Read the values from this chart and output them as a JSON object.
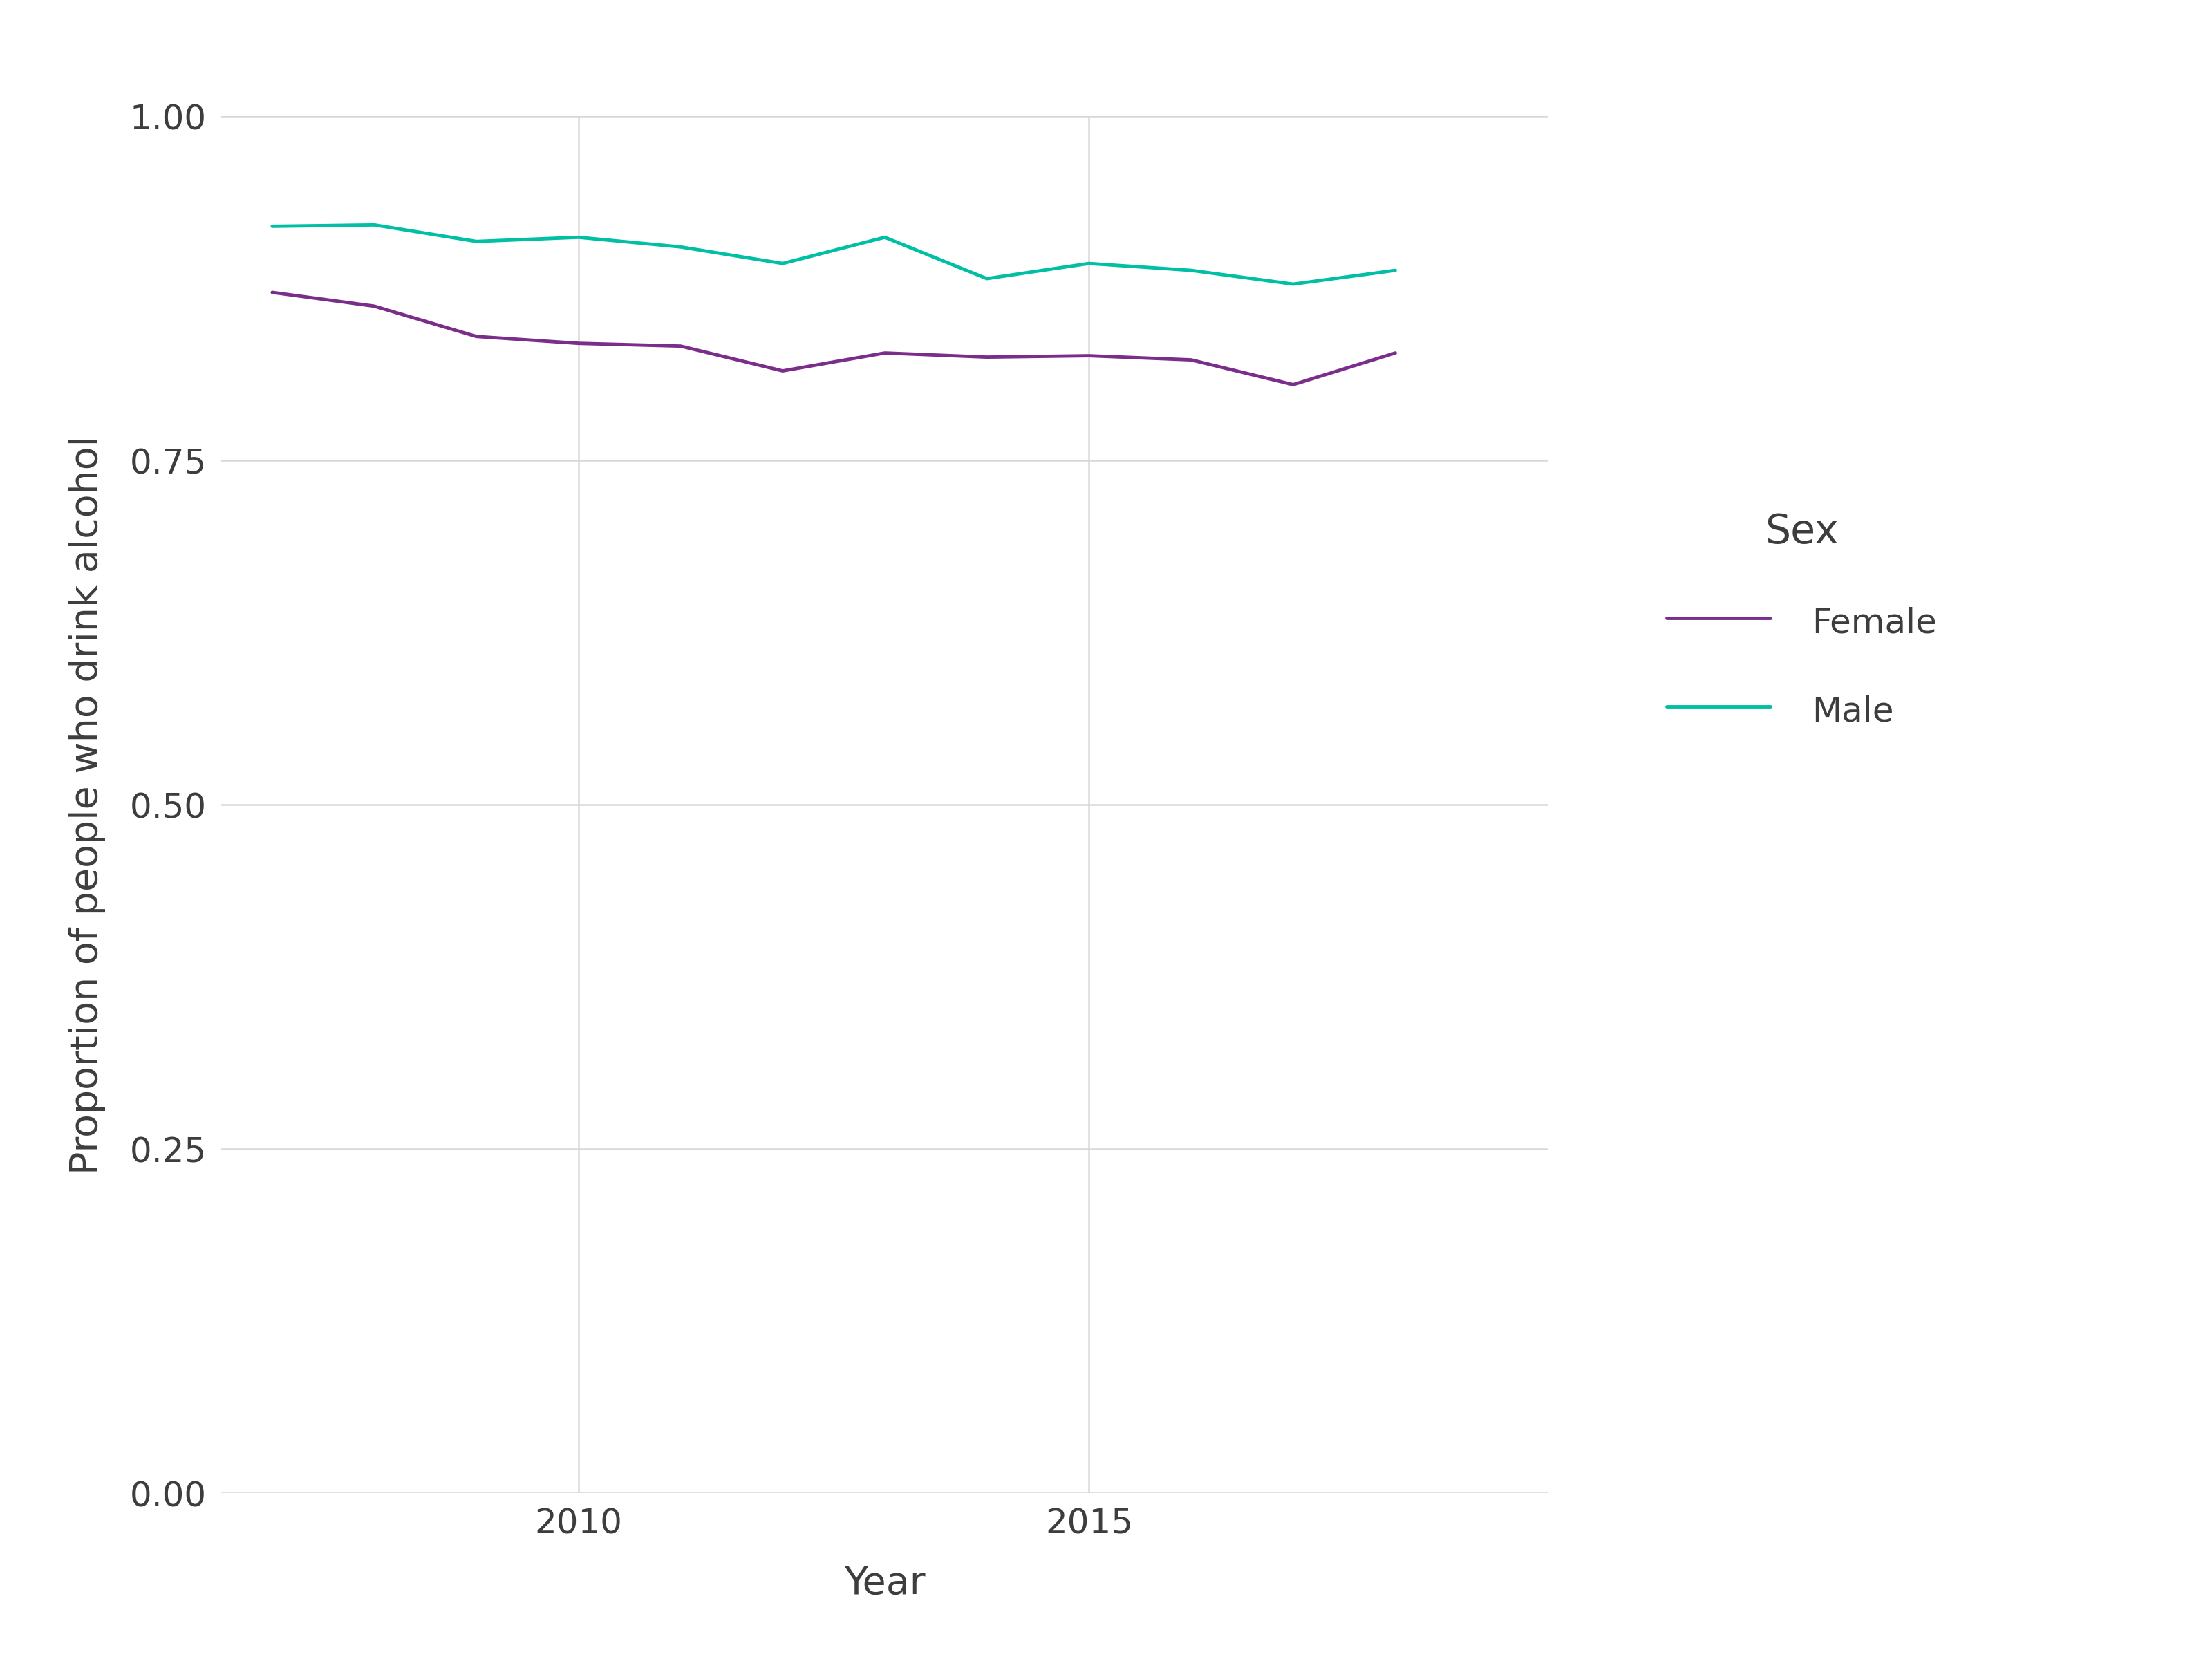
{
  "female_x": [
    2007,
    2008,
    2009,
    2010,
    2011,
    2012,
    2013,
    2014,
    2015,
    2016,
    2017,
    2018
  ],
  "female_y": [
    0.872,
    0.862,
    0.84,
    0.835,
    0.833,
    0.815,
    0.828,
    0.825,
    0.826,
    0.823,
    0.805,
    0.828
  ],
  "male_x": [
    2007,
    2008,
    2009,
    2010,
    2011,
    2012,
    2013,
    2014,
    2015,
    2016,
    2017,
    2018
  ],
  "male_y": [
    0.92,
    0.921,
    0.909,
    0.912,
    0.905,
    0.893,
    0.912,
    0.882,
    0.893,
    0.888,
    0.878,
    0.888
  ],
  "female_color": "#7B2D8B",
  "male_color": "#00BFA5",
  "ylabel": "Proportion of people who drink alcohol",
  "xlabel": "Year",
  "legend_title": "Sex",
  "legend_female": "Female",
  "legend_male": "Male",
  "ylim": [
    0.0,
    1.0
  ],
  "xlim": [
    2006.5,
    2019.5
  ],
  "yticks": [
    0.0,
    0.25,
    0.5,
    0.75,
    1.0
  ],
  "xticks": [
    2010,
    2015
  ],
  "background_color": "#FFFFFF",
  "panel_background": "#FFFFFF",
  "grid_color": "#D8D8D8",
  "line_width": 3.5,
  "tick_label_fontsize": 36,
  "axis_label_fontsize": 40,
  "legend_fontsize": 36,
  "legend_title_fontsize": 42,
  "text_color": "#3d3d3d"
}
